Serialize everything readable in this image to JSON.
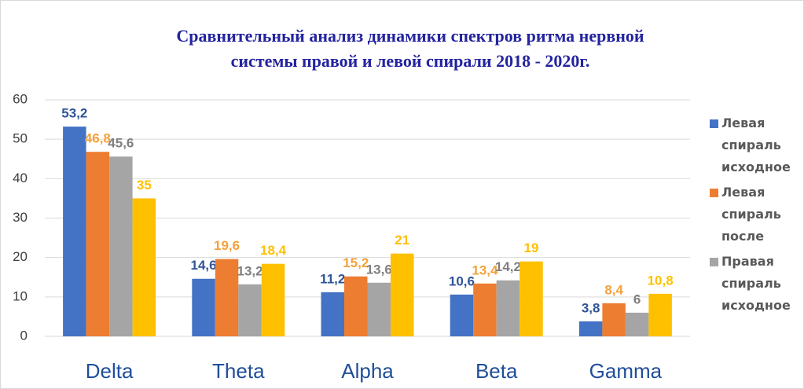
{
  "chart_data": {
    "type": "bar",
    "title": [
      "Сравнительный анализ динамики спектров ритма нервной",
      "системы правой и левой спирали 2018 - 2020г."
    ],
    "categories": [
      "Delta",
      "Theta",
      "Alpha",
      "Beta",
      "Gamma"
    ],
    "series": [
      {
        "name": "Левая спираль исходное",
        "color": "#4472c4",
        "label_color": "#2f5597",
        "values": [
          53.2,
          14.6,
          11.2,
          10.6,
          3.8
        ],
        "value_labels": [
          "53,2",
          "14,6",
          "11,2",
          "10,6",
          "3,8"
        ]
      },
      {
        "name": "Левая спираль после",
        "color": "#ed7d31",
        "label_color": "#f4a13b",
        "values": [
          46.8,
          19.6,
          15.2,
          13.4,
          8.4
        ],
        "value_labels": [
          "46,8",
          "19,6",
          "15,2",
          "13,4",
          "8,4"
        ]
      },
      {
        "name": "Правая спираль исходное",
        "color": "#a5a5a5",
        "label_color": "#7f7f7f",
        "values": [
          45.6,
          13.2,
          13.6,
          14.2,
          6
        ],
        "value_labels": [
          "45,6",
          "13,2",
          "13,6",
          "14,2",
          "6"
        ]
      },
      {
        "color": "#ffc000",
        "label_color": "#ffc000",
        "values": [
          35,
          18.4,
          21,
          19,
          10.8
        ],
        "value_labels": [
          "35",
          "18,4",
          "21",
          "19",
          "10,8"
        ]
      }
    ],
    "ylim": [
      0,
      60
    ],
    "yticks": [
      0,
      10,
      20,
      30,
      40,
      50,
      60
    ],
    "grid": true,
    "legend": "right"
  }
}
